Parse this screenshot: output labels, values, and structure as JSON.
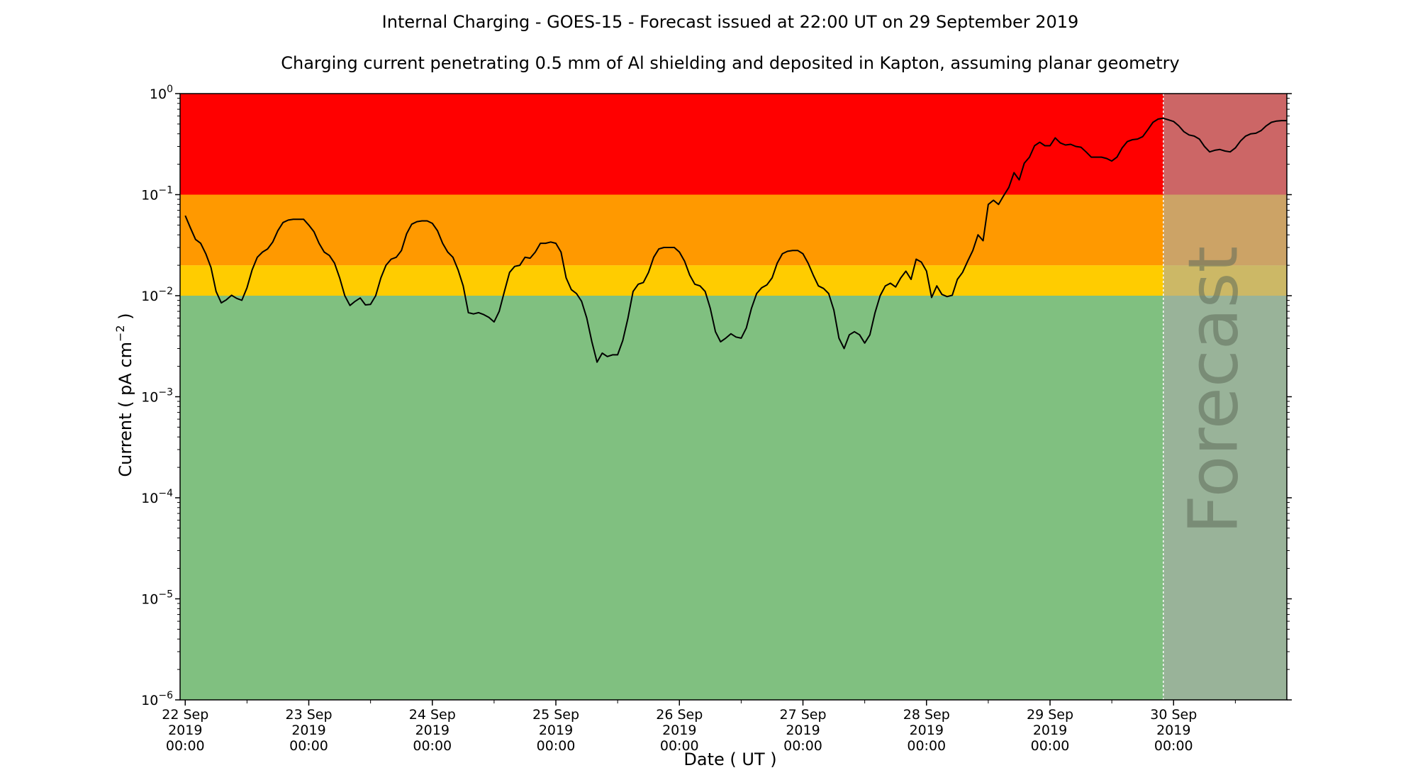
{
  "chart_data": {
    "type": "line",
    "title": "Internal Charging - GOES-15 - Forecast issued at 22:00 UT on 29 September 2019",
    "subtitle": "Charging current penetrating 0.5 mm of Al shielding and deposited in Kapton, assuming planar geometry",
    "xlabel": "Date ( UT )",
    "ylabel": "Current ( pA cm",
    "ylabel_exponent": "−2",
    "ylabel_suffix": " )",
    "y_scale": "log",
    "ylim": [
      1e-06,
      1
    ],
    "xlim": [
      "2019-09-21T23:00",
      "2019-09-30T22:00"
    ],
    "forecast_start": "2019-09-29T22:00",
    "forecast_label": "Forecast",
    "yticks": [
      {
        "value": 1e-06,
        "base": "10",
        "exp": "−6"
      },
      {
        "value": 1e-05,
        "base": "10",
        "exp": "−5"
      },
      {
        "value": 0.0001,
        "base": "10",
        "exp": "−4"
      },
      {
        "value": 0.001,
        "base": "10",
        "exp": "−3"
      },
      {
        "value": 0.01,
        "base": "10",
        "exp": "−2"
      },
      {
        "value": 0.1,
        "base": "10",
        "exp": "−1"
      },
      {
        "value": 1,
        "base": "10",
        "exp": "0"
      }
    ],
    "xticks": [
      {
        "date": "2019-09-22T00:00",
        "lines": [
          "22 Sep",
          "2019",
          "00:00"
        ]
      },
      {
        "date": "2019-09-23T00:00",
        "lines": [
          "23 Sep",
          "2019",
          "00:00"
        ]
      },
      {
        "date": "2019-09-24T00:00",
        "lines": [
          "24 Sep",
          "2019",
          "00:00"
        ]
      },
      {
        "date": "2019-09-25T00:00",
        "lines": [
          "25 Sep",
          "2019",
          "00:00"
        ]
      },
      {
        "date": "2019-09-26T00:00",
        "lines": [
          "26 Sep",
          "2019",
          "00:00"
        ]
      },
      {
        "date": "2019-09-27T00:00",
        "lines": [
          "27 Sep",
          "2019",
          "00:00"
        ]
      },
      {
        "date": "2019-09-28T00:00",
        "lines": [
          "28 Sep",
          "2019",
          "00:00"
        ]
      },
      {
        "date": "2019-09-29T00:00",
        "lines": [
          "29 Sep",
          "2019",
          "00:00"
        ]
      },
      {
        "date": "2019-09-30T00:00",
        "lines": [
          "30 Sep",
          "2019",
          "00:00"
        ]
      }
    ],
    "bands": [
      {
        "ymin": 1e-06,
        "ymax": 0.01,
        "color": "#80c080"
      },
      {
        "ymin": 0.01,
        "ymax": 0.02,
        "color": "#ffcc00"
      },
      {
        "ymin": 0.02,
        "ymax": 0.1,
        "color": "#ff9900"
      },
      {
        "ymin": 0.1,
        "ymax": 1,
        "color": "#ff0000"
      }
    ],
    "forecast_overlay_color": "#aaaaaa",
    "line_color": "#000000",
    "series": [
      {
        "points": [
          [
            "2019-09-22T00:00",
            0.062
          ],
          [
            "2019-09-22T01:00",
            0.047
          ],
          [
            "2019-09-22T02:00",
            0.036
          ],
          [
            "2019-09-22T03:00",
            0.033
          ],
          [
            "2019-09-22T04:00",
            0.026
          ],
          [
            "2019-09-22T05:00",
            0.019
          ],
          [
            "2019-09-22T06:00",
            0.011
          ],
          [
            "2019-09-22T07:00",
            0.0085
          ],
          [
            "2019-09-22T08:00",
            0.0091
          ],
          [
            "2019-09-22T09:00",
            0.0101
          ],
          [
            "2019-09-22T10:00",
            0.0094
          ],
          [
            "2019-09-22T11:00",
            0.009
          ],
          [
            "2019-09-22T12:00",
            0.012
          ],
          [
            "2019-09-22T13:00",
            0.018
          ],
          [
            "2019-09-22T14:00",
            0.024
          ],
          [
            "2019-09-22T15:00",
            0.027
          ],
          [
            "2019-09-22T16:00",
            0.029
          ],
          [
            "2019-09-22T17:00",
            0.034
          ],
          [
            "2019-09-22T18:00",
            0.044
          ],
          [
            "2019-09-22T19:00",
            0.053
          ],
          [
            "2019-09-22T20:00",
            0.056
          ],
          [
            "2019-09-22T21:00",
            0.057
          ],
          [
            "2019-09-22T22:00",
            0.057
          ],
          [
            "2019-09-22T23:00",
            0.057
          ],
          [
            "2019-09-23T00:00",
            0.05
          ],
          [
            "2019-09-23T01:00",
            0.043
          ],
          [
            "2019-09-23T02:00",
            0.033
          ],
          [
            "2019-09-23T03:00",
            0.027
          ],
          [
            "2019-09-23T04:00",
            0.025
          ],
          [
            "2019-09-23T05:00",
            0.021
          ],
          [
            "2019-09-23T06:00",
            0.015
          ],
          [
            "2019-09-23T07:00",
            0.01
          ],
          [
            "2019-09-23T08:00",
            0.008
          ],
          [
            "2019-09-23T09:00",
            0.0088
          ],
          [
            "2019-09-23T10:00",
            0.0095
          ],
          [
            "2019-09-23T11:00",
            0.0081
          ],
          [
            "2019-09-23T12:00",
            0.0082
          ],
          [
            "2019-09-23T13:00",
            0.01
          ],
          [
            "2019-09-23T14:00",
            0.015
          ],
          [
            "2019-09-23T15:00",
            0.02
          ],
          [
            "2019-09-23T16:00",
            0.023
          ],
          [
            "2019-09-23T17:00",
            0.024
          ],
          [
            "2019-09-23T18:00",
            0.028
          ],
          [
            "2019-09-23T19:00",
            0.041
          ],
          [
            "2019-09-23T20:00",
            0.051
          ],
          [
            "2019-09-23T21:00",
            0.054
          ],
          [
            "2019-09-23T22:00",
            0.055
          ],
          [
            "2019-09-23T23:00",
            0.055
          ],
          [
            "2019-09-24T00:00",
            0.052
          ],
          [
            "2019-09-24T01:00",
            0.044
          ],
          [
            "2019-09-24T02:00",
            0.033
          ],
          [
            "2019-09-24T03:00",
            0.027
          ],
          [
            "2019-09-24T04:00",
            0.024
          ],
          [
            "2019-09-24T05:00",
            0.018
          ],
          [
            "2019-09-24T06:00",
            0.0125
          ],
          [
            "2019-09-24T07:00",
            0.0068
          ],
          [
            "2019-09-24T08:00",
            0.0066
          ],
          [
            "2019-09-24T09:00",
            0.0068
          ],
          [
            "2019-09-24T10:00",
            0.0065
          ],
          [
            "2019-09-24T11:00",
            0.0061
          ],
          [
            "2019-09-24T12:00",
            0.0055
          ],
          [
            "2019-09-24T13:00",
            0.007
          ],
          [
            "2019-09-24T14:00",
            0.011
          ],
          [
            "2019-09-24T15:00",
            0.017
          ],
          [
            "2019-09-24T16:00",
            0.0195
          ],
          [
            "2019-09-24T17:00",
            0.02
          ],
          [
            "2019-09-24T18:00",
            0.024
          ],
          [
            "2019-09-24T19:00",
            0.0235
          ],
          [
            "2019-09-24T20:00",
            0.027
          ],
          [
            "2019-09-24T21:00",
            0.033
          ],
          [
            "2019-09-24T22:00",
            0.033
          ],
          [
            "2019-09-24T23:00",
            0.034
          ],
          [
            "2019-09-25T00:00",
            0.033
          ],
          [
            "2019-09-25T01:00",
            0.027
          ],
          [
            "2019-09-25T02:00",
            0.015
          ],
          [
            "2019-09-25T03:00",
            0.0115
          ],
          [
            "2019-09-25T04:00",
            0.0105
          ],
          [
            "2019-09-25T05:00",
            0.0088
          ],
          [
            "2019-09-25T06:00",
            0.006
          ],
          [
            "2019-09-25T07:00",
            0.0035
          ],
          [
            "2019-09-25T08:00",
            0.0022
          ],
          [
            "2019-09-25T09:00",
            0.0027
          ],
          [
            "2019-09-25T10:00",
            0.0025
          ],
          [
            "2019-09-25T11:00",
            0.0026
          ],
          [
            "2019-09-25T12:00",
            0.0026
          ],
          [
            "2019-09-25T13:00",
            0.0036
          ],
          [
            "2019-09-25T14:00",
            0.006
          ],
          [
            "2019-09-25T15:00",
            0.011
          ],
          [
            "2019-09-25T16:00",
            0.013
          ],
          [
            "2019-09-25T17:00",
            0.0135
          ],
          [
            "2019-09-25T18:00",
            0.017
          ],
          [
            "2019-09-25T19:00",
            0.024
          ],
          [
            "2019-09-25T20:00",
            0.029
          ],
          [
            "2019-09-25T21:00",
            0.03
          ],
          [
            "2019-09-25T22:00",
            0.03
          ],
          [
            "2019-09-25T23:00",
            0.03
          ],
          [
            "2019-09-26T00:00",
            0.027
          ],
          [
            "2019-09-26T01:00",
            0.022
          ],
          [
            "2019-09-26T02:00",
            0.016
          ],
          [
            "2019-09-26T03:00",
            0.013
          ],
          [
            "2019-09-26T04:00",
            0.0125
          ],
          [
            "2019-09-26T05:00",
            0.011
          ],
          [
            "2019-09-26T06:00",
            0.0075
          ],
          [
            "2019-09-26T07:00",
            0.0044
          ],
          [
            "2019-09-26T08:00",
            0.0035
          ],
          [
            "2019-09-26T09:00",
            0.0038
          ],
          [
            "2019-09-26T10:00",
            0.0042
          ],
          [
            "2019-09-26T11:00",
            0.0039
          ],
          [
            "2019-09-26T12:00",
            0.0038
          ],
          [
            "2019-09-26T13:00",
            0.0048
          ],
          [
            "2019-09-26T14:00",
            0.0075
          ],
          [
            "2019-09-26T15:00",
            0.0105
          ],
          [
            "2019-09-26T16:00",
            0.012
          ],
          [
            "2019-09-26T17:00",
            0.0128
          ],
          [
            "2019-09-26T18:00",
            0.015
          ],
          [
            "2019-09-26T19:00",
            0.021
          ],
          [
            "2019-09-26T20:00",
            0.026
          ],
          [
            "2019-09-26T21:00",
            0.0275
          ],
          [
            "2019-09-26T22:00",
            0.028
          ],
          [
            "2019-09-26T23:00",
            0.028
          ],
          [
            "2019-09-27T00:00",
            0.026
          ],
          [
            "2019-09-27T01:00",
            0.021
          ],
          [
            "2019-09-27T02:00",
            0.016
          ],
          [
            "2019-09-27T03:00",
            0.0125
          ],
          [
            "2019-09-27T04:00",
            0.0118
          ],
          [
            "2019-09-27T05:00",
            0.0105
          ],
          [
            "2019-09-27T06:00",
            0.0072
          ],
          [
            "2019-09-27T07:00",
            0.0038
          ],
          [
            "2019-09-27T08:00",
            0.003
          ],
          [
            "2019-09-27T09:00",
            0.0041
          ],
          [
            "2019-09-27T10:00",
            0.0044
          ],
          [
            "2019-09-27T11:00",
            0.0041
          ],
          [
            "2019-09-27T12:00",
            0.0034
          ],
          [
            "2019-09-27T13:00",
            0.0041
          ],
          [
            "2019-09-27T14:00",
            0.0068
          ],
          [
            "2019-09-27T15:00",
            0.01
          ],
          [
            "2019-09-27T16:00",
            0.0125
          ],
          [
            "2019-09-27T17:00",
            0.0133
          ],
          [
            "2019-09-27T18:00",
            0.0122
          ],
          [
            "2019-09-27T19:00",
            0.015
          ],
          [
            "2019-09-27T20:00",
            0.0175
          ],
          [
            "2019-09-27T21:00",
            0.0145
          ],
          [
            "2019-09-27T22:00",
            0.023
          ],
          [
            "2019-09-27T23:00",
            0.0215
          ],
          [
            "2019-09-28T00:00",
            0.0175
          ],
          [
            "2019-09-28T01:00",
            0.0096
          ],
          [
            "2019-09-28T02:00",
            0.0125
          ],
          [
            "2019-09-28T03:00",
            0.0103
          ],
          [
            "2019-09-28T04:00",
            0.0098
          ],
          [
            "2019-09-28T05:00",
            0.0101
          ],
          [
            "2019-09-28T06:00",
            0.0145
          ],
          [
            "2019-09-28T07:00",
            0.017
          ],
          [
            "2019-09-28T08:00",
            0.022
          ],
          [
            "2019-09-28T09:00",
            0.028
          ],
          [
            "2019-09-28T10:00",
            0.04
          ],
          [
            "2019-09-28T11:00",
            0.035
          ],
          [
            "2019-09-28T12:00",
            0.08
          ],
          [
            "2019-09-28T13:00",
            0.088
          ],
          [
            "2019-09-28T14:00",
            0.08
          ],
          [
            "2019-09-28T15:00",
            0.098
          ],
          [
            "2019-09-28T16:00",
            0.118
          ],
          [
            "2019-09-28T17:00",
            0.165
          ],
          [
            "2019-09-28T18:00",
            0.14
          ],
          [
            "2019-09-28T19:00",
            0.205
          ],
          [
            "2019-09-28T20:00",
            0.235
          ],
          [
            "2019-09-28T21:00",
            0.305
          ],
          [
            "2019-09-28T22:00",
            0.33
          ],
          [
            "2019-09-28T23:00",
            0.305
          ],
          [
            "2019-09-29T00:00",
            0.305
          ],
          [
            "2019-09-29T01:00",
            0.365
          ],
          [
            "2019-09-29T02:00",
            0.325
          ],
          [
            "2019-09-29T03:00",
            0.31
          ],
          [
            "2019-09-29T04:00",
            0.315
          ],
          [
            "2019-09-29T05:00",
            0.3
          ],
          [
            "2019-09-29T06:00",
            0.295
          ],
          [
            "2019-09-29T07:00",
            0.265
          ],
          [
            "2019-09-29T08:00",
            0.235
          ],
          [
            "2019-09-29T09:00",
            0.235
          ],
          [
            "2019-09-29T10:00",
            0.235
          ],
          [
            "2019-09-29T11:00",
            0.228
          ],
          [
            "2019-09-29T12:00",
            0.215
          ],
          [
            "2019-09-29T13:00",
            0.235
          ],
          [
            "2019-09-29T14:00",
            0.29
          ],
          [
            "2019-09-29T15:00",
            0.335
          ],
          [
            "2019-09-29T16:00",
            0.35
          ],
          [
            "2019-09-29T17:00",
            0.355
          ],
          [
            "2019-09-29T18:00",
            0.375
          ],
          [
            "2019-09-29T19:00",
            0.44
          ],
          [
            "2019-09-29T20:00",
            0.52
          ],
          [
            "2019-09-29T21:00",
            0.56
          ],
          [
            "2019-09-29T22:00",
            0.57
          ],
          [
            "2019-09-29T23:00",
            0.55
          ],
          [
            "2019-09-30T00:00",
            0.53
          ],
          [
            "2019-09-30T01:00",
            0.48
          ],
          [
            "2019-09-30T02:00",
            0.42
          ],
          [
            "2019-09-30T03:00",
            0.39
          ],
          [
            "2019-09-30T04:00",
            0.38
          ],
          [
            "2019-09-30T05:00",
            0.355
          ],
          [
            "2019-09-30T06:00",
            0.3
          ],
          [
            "2019-09-30T07:00",
            0.265
          ],
          [
            "2019-09-30T08:00",
            0.275
          ],
          [
            "2019-09-30T09:00",
            0.28
          ],
          [
            "2019-09-30T10:00",
            0.27
          ],
          [
            "2019-09-30T11:00",
            0.265
          ],
          [
            "2019-09-30T12:00",
            0.29
          ],
          [
            "2019-09-30T13:00",
            0.34
          ],
          [
            "2019-09-30T14:00",
            0.38
          ],
          [
            "2019-09-30T15:00",
            0.4
          ],
          [
            "2019-09-30T16:00",
            0.405
          ],
          [
            "2019-09-30T17:00",
            0.43
          ],
          [
            "2019-09-30T18:00",
            0.48
          ],
          [
            "2019-09-30T19:00",
            0.52
          ],
          [
            "2019-09-30T20:00",
            0.535
          ],
          [
            "2019-09-30T21:00",
            0.54
          ],
          [
            "2019-09-30T22:00",
            0.54
          ]
        ]
      }
    ]
  }
}
